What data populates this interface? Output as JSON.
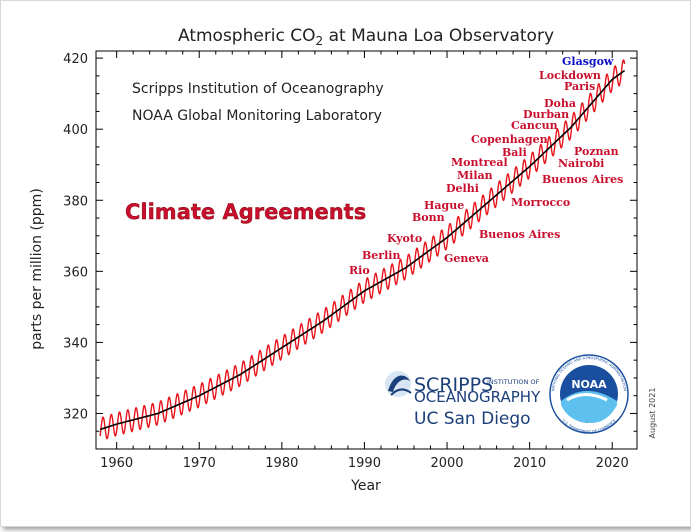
{
  "chart_data": {
    "type": "line",
    "title": "Atmospheric CO₂ at Mauna Loa Observatory",
    "institutions": [
      "Scripps Institution of Oceanography",
      "NOAA Global Monitoring Laboratory"
    ],
    "xlabel": "Year",
    "ylabel": "parts per million (ppm)",
    "xlim": [
      1957.5,
      2023
    ],
    "ylim": [
      310,
      422
    ],
    "xticks": [
      1960,
      1970,
      1980,
      1990,
      2000,
      2010,
      2020
    ],
    "yticks": [
      320,
      340,
      360,
      380,
      400,
      420
    ],
    "grid": false,
    "series": [
      {
        "role": "monthly",
        "color": "#e8141b",
        "seasonal_amplitude_ppm": 3.2
      },
      {
        "role": "trend",
        "color": "#000000",
        "x": [
          1958,
          1960,
          1965,
          1970,
          1975,
          1980,
          1985,
          1990,
          1995,
          2000,
          2005,
          2010,
          2015,
          2020,
          2021.5
        ],
        "y": [
          315.5,
          317,
          320,
          325,
          331,
          338.5,
          346,
          354.5,
          361,
          369.5,
          379.5,
          389.5,
          400.5,
          414,
          416.5
        ]
      }
    ],
    "annotation_heading": "Climate Agreements",
    "annotations": [
      {
        "label": "Rio",
        "x": 1992,
        "y": 357.7
      },
      {
        "label": "Berlin",
        "x": 1995,
        "y": 361.5
      },
      {
        "label": "Kyoto",
        "x": 1997,
        "y": 366
      },
      {
        "label": "Geneva",
        "x": 1996,
        "y": 362
      },
      {
        "label": "Bonn",
        "x": 2001,
        "y": 371
      },
      {
        "label": "Hague",
        "x": 2000,
        "y": 369.5
      },
      {
        "label": "Buenos Aires",
        "x": 1998,
        "y": 367
      },
      {
        "label": "Delhi",
        "x": 2002,
        "y": 373
      },
      {
        "label": "Milan",
        "x": 2003,
        "y": 375.5
      },
      {
        "label": "Montreal",
        "x": 2005,
        "y": 379.5
      },
      {
        "label": "Morrocco",
        "x": 2001,
        "y": 371
      },
      {
        "label": "Bali",
        "x": 2007,
        "y": 383.5
      },
      {
        "label": "Copenhagen",
        "x": 2009,
        "y": 387.5
      },
      {
        "label": "Cancun",
        "x": 2010,
        "y": 389.5
      },
      {
        "label": "Durban",
        "x": 2011,
        "y": 391.5
      },
      {
        "label": "Doha",
        "x": 2012,
        "y": 393.5
      },
      {
        "label": "Buenos Aires",
        "x": 2004,
        "y": 377.5
      },
      {
        "label": "Nairobi",
        "x": 2006,
        "y": 381.5
      },
      {
        "label": "Poznan",
        "x": 2008,
        "y": 385.5
      },
      {
        "label": "Paris",
        "x": 2015,
        "y": 400.5
      },
      {
        "label": "Lockdown",
        "x": 2020,
        "y": 413
      },
      {
        "label": "Glasgow",
        "x": 2021,
        "y": 415.5
      }
    ]
  },
  "logos": {
    "scripps": {
      "line1": "SCRIPPS",
      "small": "INSTITUTION OF",
      "line2": "OCEANOGRAPHY",
      "ucsd": "UC San Diego"
    },
    "noaa": {
      "text": "NOAA",
      "ring_top": "NATIONAL OCEANIC AND ATMOSPHERIC ADMINISTRATION",
      "ring_bottom": "U.S. DEPARTMENT OF COMMERCE"
    }
  },
  "date_stamp": "August 2021",
  "colors": {
    "monthly": "#e8141b",
    "trend": "#000000",
    "agreement_label": "#c8102e",
    "glasgow_label": "#0b10c8",
    "heading": "#c8102e",
    "noaa_blue": "#1a4fa0",
    "scripps_blue": "#1b3f7a"
  }
}
